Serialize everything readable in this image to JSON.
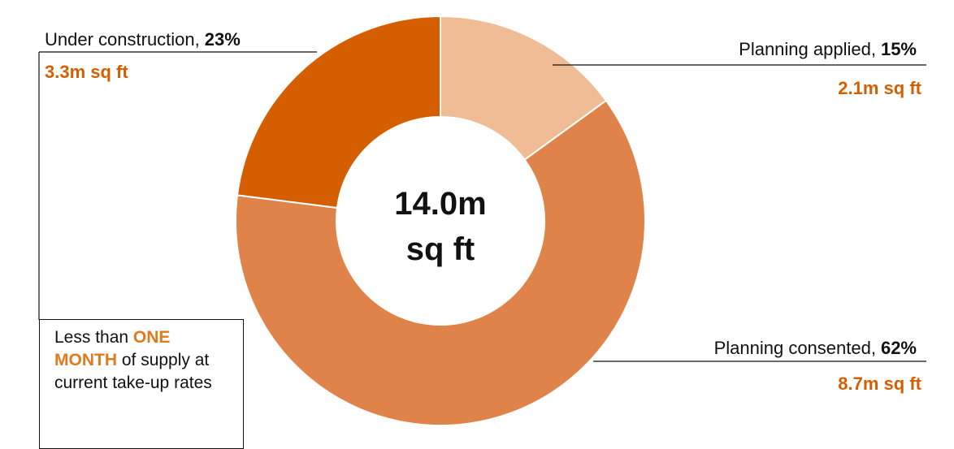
{
  "chart_data": {
    "type": "donut",
    "categories": [
      "Planning applied,",
      "Planning consented,",
      "Under construction,"
    ],
    "values": [
      15,
      62,
      23
    ],
    "value_labels": [
      "15%",
      "62%",
      "23%"
    ],
    "sublabels": [
      "2.1m sq ft",
      "8.7m sq ft",
      "3.3m sq ft"
    ],
    "colors": [
      "#efbc96",
      "#e0834a",
      "#d55f00"
    ],
    "center_label": [
      "14.0m",
      "sq ft"
    ],
    "annotation": {
      "before": "Less than",
      "highlight": "ONE MONTH",
      "after": "of supply at current take-up rates"
    }
  }
}
